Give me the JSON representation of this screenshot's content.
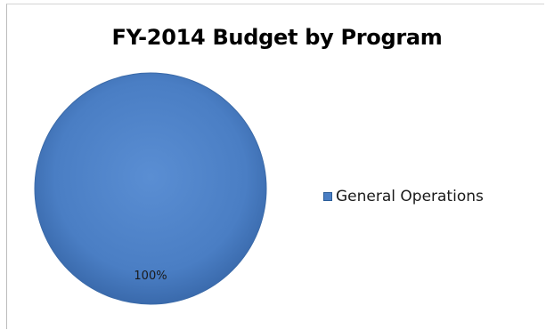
{
  "chart_data": {
    "type": "pie",
    "title": "FY-2014 Budget by Program",
    "categories": [
      "General Operations"
    ],
    "values": [
      100
    ],
    "data_labels": [
      "100%"
    ],
    "colors": [
      "#4a7ec4"
    ],
    "legend_position": "right"
  }
}
